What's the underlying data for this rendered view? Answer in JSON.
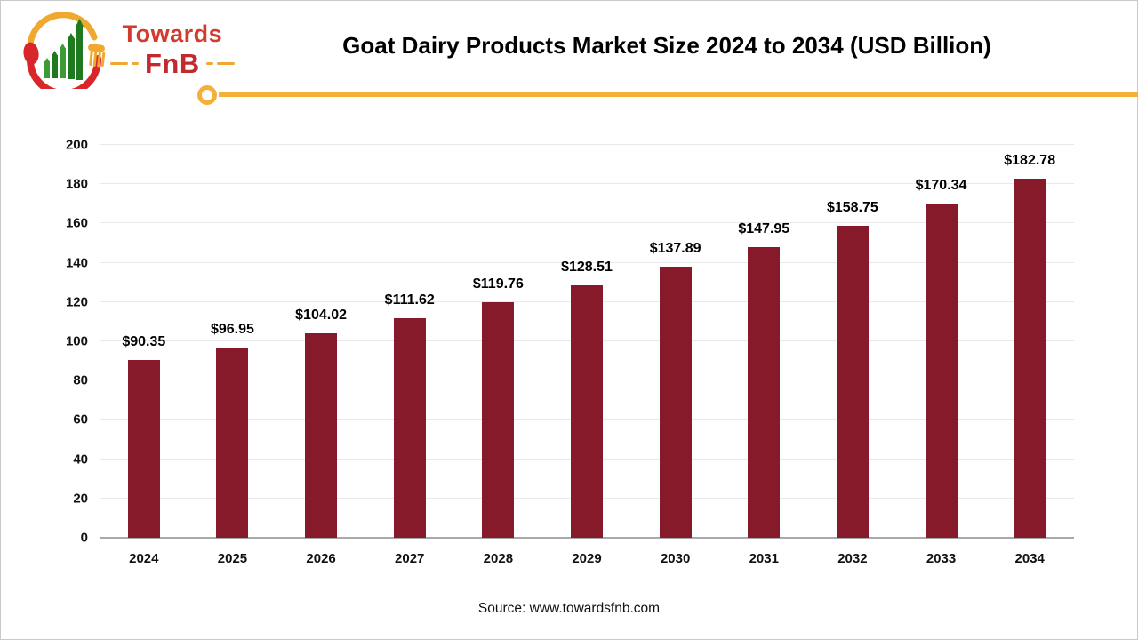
{
  "logo": {
    "line1": "Towards",
    "line2": "FnB"
  },
  "header": {
    "title": "Goat Dairy Products Market Size 2024 to 2034 (USD Billion)"
  },
  "chart_data": {
    "type": "bar",
    "title": "Goat Dairy Products Market Size 2024 to 2034 (USD Billion)",
    "categories": [
      "2024",
      "2025",
      "2026",
      "2027",
      "2028",
      "2029",
      "2030",
      "2031",
      "2032",
      "2033",
      "2034"
    ],
    "values": [
      90.35,
      96.95,
      104.02,
      111.62,
      119.76,
      128.51,
      137.89,
      147.95,
      158.75,
      170.34,
      182.78
    ],
    "labels": [
      "$90.35",
      "$96.95",
      "$104.02",
      "$111.62",
      "$119.76",
      "$128.51",
      "$137.89",
      "$147.95",
      "$158.75",
      "$170.34",
      "$182.78"
    ],
    "unit": "USD Billion",
    "xlabel": "",
    "ylabel": "",
    "ylim": [
      0,
      200
    ],
    "ytick_step": 20,
    "grid": true,
    "legend": "none",
    "bar_color": "#871a2a"
  },
  "footer": {
    "source": "Source: www.towardsfnb.com"
  },
  "colors": {
    "accent_line": "#f5af3b",
    "bar": "#871a2a",
    "grid": "#e9e9e9",
    "axis": "#a9a9a9",
    "logo_red": "#d8262b",
    "logo_yellow": "#f0a830",
    "logo_green_dark": "#1f7a1f",
    "logo_green_light": "#3c9b35",
    "title_text": "#000000"
  }
}
